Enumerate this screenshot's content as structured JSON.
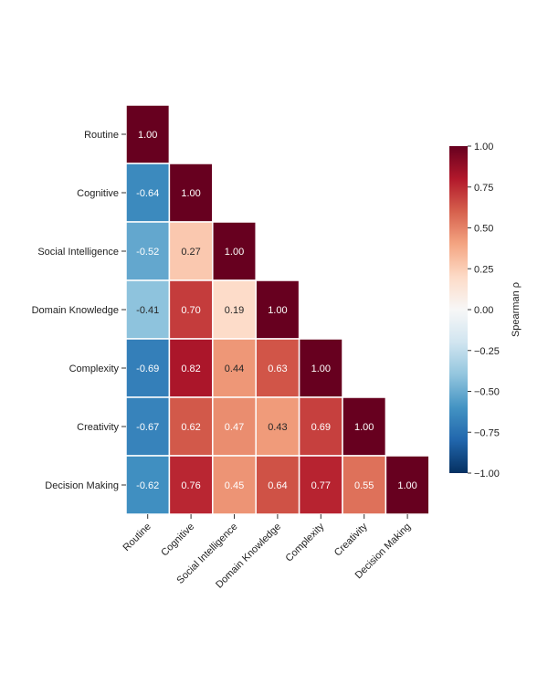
{
  "chart_data": {
    "type": "heatmap",
    "title": "",
    "xlabel": "",
    "ylabel": "",
    "categories": [
      "Routine",
      "Cognitive",
      "Social Intelligence",
      "Domain Knowledge",
      "Complexity",
      "Creativity",
      "Decision Making"
    ],
    "mask": "upper triangle hidden",
    "values": [
      [
        1.0
      ],
      [
        -0.64,
        1.0
      ],
      [
        -0.52,
        0.27,
        1.0
      ],
      [
        -0.41,
        0.7,
        0.19,
        1.0
      ],
      [
        -0.69,
        0.82,
        0.44,
        0.63,
        1.0
      ],
      [
        -0.67,
        0.62,
        0.47,
        0.43,
        0.69,
        1.0
      ],
      [
        -0.62,
        0.76,
        0.45,
        0.64,
        0.77,
        0.55,
        1.0
      ]
    ],
    "colormap": "RdBu_r",
    "colormap_stops": [
      "#053061",
      "#2166ac",
      "#4393c3",
      "#92c5de",
      "#d1e5f0",
      "#f7f7f7",
      "#fddbc7",
      "#f4a582",
      "#d6604d",
      "#b2182b",
      "#67001f"
    ],
    "colorbar": {
      "label": "Spearman ρ",
      "range": [
        -1,
        1
      ],
      "ticks": [
        "1.00",
        "0.75",
        "0.50",
        "0.25",
        "0.00",
        "−0.25",
        "−0.50",
        "−0.75",
        "−1.00"
      ],
      "tick_values": [
        1,
        0.75,
        0.5,
        0.25,
        0,
        -0.25,
        -0.5,
        -0.75,
        -1
      ]
    }
  }
}
